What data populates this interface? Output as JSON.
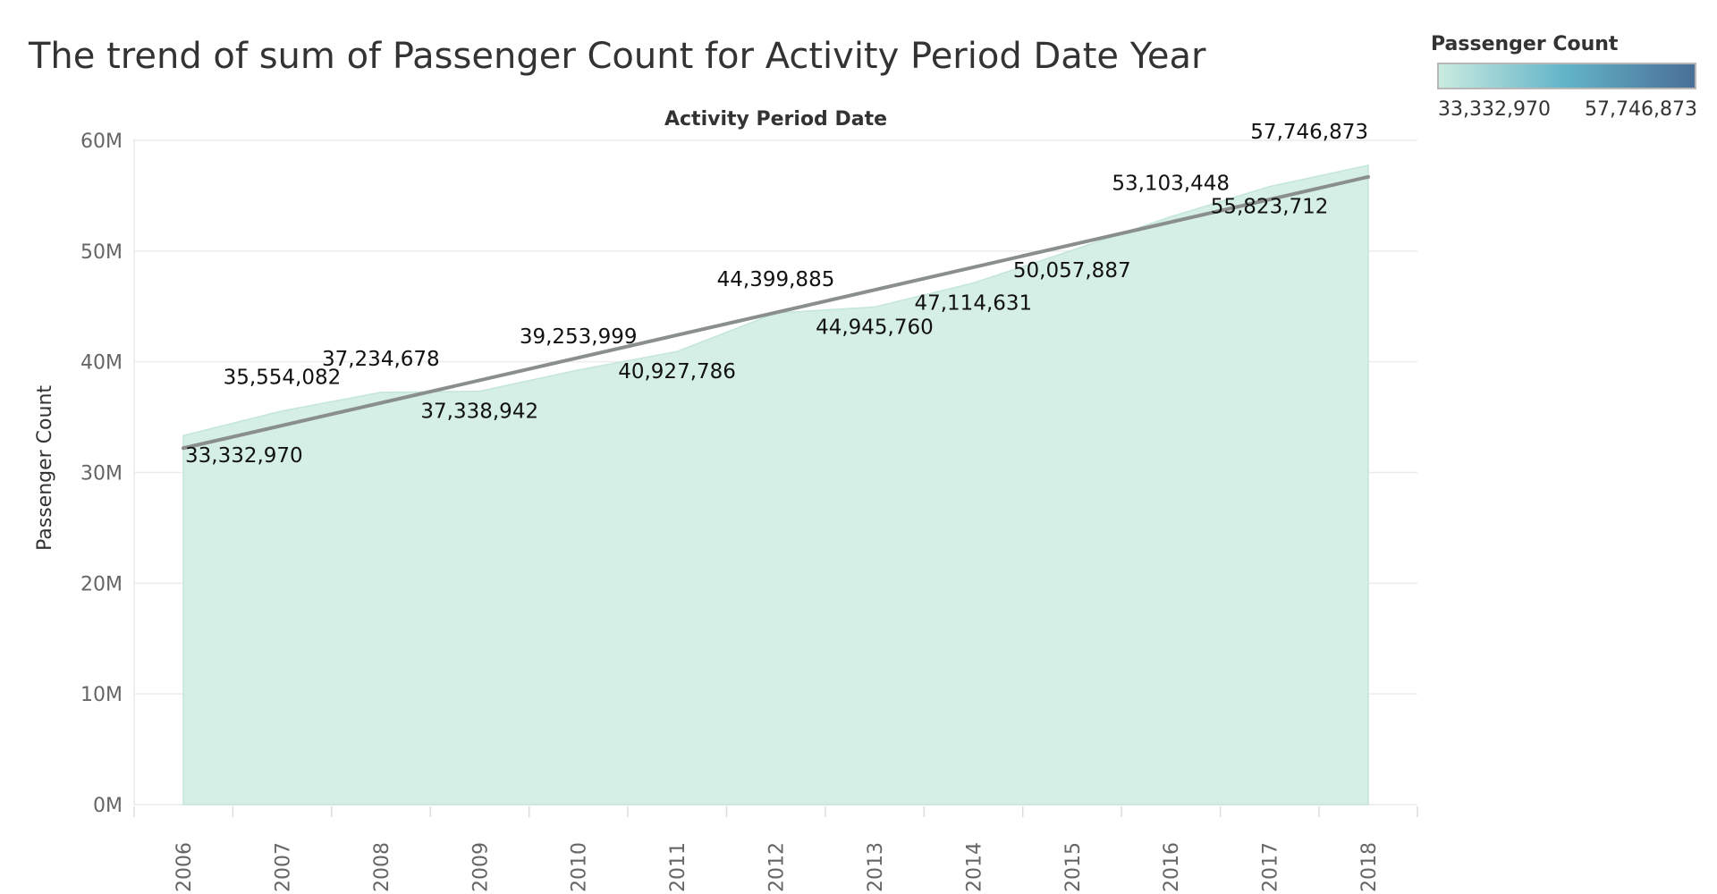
{
  "title": "The trend of sum of Passenger Count for Activity Period Date Year",
  "legend": {
    "title": "Passenger Count",
    "min_label": "33,332,970",
    "max_label": "57,746,873",
    "color_low": "#c9ebdf",
    "color_mid": "#62b3c8",
    "color_high": "#4a6f95"
  },
  "colors": {
    "area_fill": "#d5eee6",
    "area_stroke": "#c4e6da",
    "trend_line": "#8a8f8d",
    "grid": "#ececec"
  },
  "chart_data": {
    "type": "area",
    "title": "The trend of sum of Passenger Count for Activity Period Date Year",
    "top_axis_label": "Activity Period Date",
    "ylabel": "Passenger Count",
    "ylim": [
      0,
      60000000
    ],
    "y_ticks": [
      0,
      10000000,
      20000000,
      30000000,
      40000000,
      50000000,
      60000000
    ],
    "y_tick_labels": [
      "0M",
      "10M",
      "20M",
      "30M",
      "40M",
      "50M",
      "60M"
    ],
    "categories": [
      "2006",
      "2007",
      "2008",
      "2009",
      "2010",
      "2011",
      "2012",
      "2013",
      "2014",
      "2015",
      "2016",
      "2017",
      "2018"
    ],
    "series": [
      {
        "name": "Passenger Count",
        "values": [
          33332970,
          35554082,
          37234678,
          37338942,
          39253999,
          40927786,
          44399885,
          44945760,
          47114631,
          50057887,
          53103448,
          55823712,
          57746873
        ],
        "labels": [
          "33,332,970",
          "35,554,082",
          "37,234,678",
          "37,338,942",
          "39,253,999",
          "40,927,786",
          "44,399,885",
          "44,945,760",
          "47,114,631",
          "50,057,887",
          "53,103,448",
          "55,823,712",
          "57,746,873"
        ],
        "label_positions": [
          "below",
          "above",
          "above",
          "below",
          "above",
          "below",
          "above",
          "below",
          "below",
          "below",
          "above",
          "below",
          "above"
        ]
      }
    ],
    "trend_line": {
      "start": 32200000,
      "end": 56700000
    },
    "grid": true
  }
}
